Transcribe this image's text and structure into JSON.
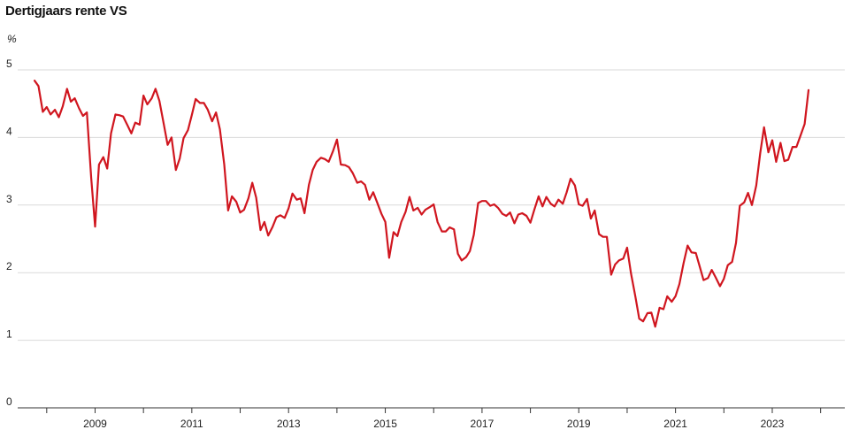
{
  "chart_data": {
    "type": "line",
    "title": "Dertigjaars rente VS",
    "unit": "%",
    "xlabel": "",
    "ylabel": "",
    "ylim": [
      0,
      5
    ],
    "yticks": [
      0,
      1,
      2,
      3,
      4,
      5
    ],
    "xlim": [
      2007.4,
      2024.5
    ],
    "xticks": [
      2009,
      2011,
      2013,
      2015,
      2017,
      2019,
      2021,
      2023
    ],
    "grid": true,
    "legend": "none",
    "series": [
      {
        "color": "#d0161f",
        "points": [
          [
            2007.75,
            4.84
          ],
          [
            2007.83,
            4.76
          ],
          [
            2007.92,
            4.38
          ],
          [
            2008.0,
            4.45
          ],
          [
            2008.08,
            4.34
          ],
          [
            2008.17,
            4.41
          ],
          [
            2008.25,
            4.3
          ],
          [
            2008.33,
            4.46
          ],
          [
            2008.42,
            4.72
          ],
          [
            2008.5,
            4.53
          ],
          [
            2008.58,
            4.58
          ],
          [
            2008.67,
            4.43
          ],
          [
            2008.75,
            4.32
          ],
          [
            2008.83,
            4.37
          ],
          [
            2008.92,
            3.4
          ],
          [
            2009.0,
            2.68
          ],
          [
            2009.08,
            3.6
          ],
          [
            2009.17,
            3.71
          ],
          [
            2009.25,
            3.54
          ],
          [
            2009.33,
            4.06
          ],
          [
            2009.42,
            4.34
          ],
          [
            2009.5,
            4.33
          ],
          [
            2009.58,
            4.31
          ],
          [
            2009.67,
            4.18
          ],
          [
            2009.75,
            4.06
          ],
          [
            2009.83,
            4.22
          ],
          [
            2009.92,
            4.19
          ],
          [
            2010.0,
            4.62
          ],
          [
            2010.08,
            4.49
          ],
          [
            2010.17,
            4.58
          ],
          [
            2010.25,
            4.72
          ],
          [
            2010.33,
            4.54
          ],
          [
            2010.42,
            4.2
          ],
          [
            2010.5,
            3.89
          ],
          [
            2010.58,
            4.0
          ],
          [
            2010.67,
            3.52
          ],
          [
            2010.75,
            3.69
          ],
          [
            2010.83,
            3.99
          ],
          [
            2010.92,
            4.11
          ],
          [
            2011.0,
            4.33
          ],
          [
            2011.08,
            4.57
          ],
          [
            2011.17,
            4.51
          ],
          [
            2011.25,
            4.51
          ],
          [
            2011.33,
            4.41
          ],
          [
            2011.42,
            4.24
          ],
          [
            2011.5,
            4.37
          ],
          [
            2011.58,
            4.12
          ],
          [
            2011.67,
            3.6
          ],
          [
            2011.75,
            2.92
          ],
          [
            2011.83,
            3.13
          ],
          [
            2011.92,
            3.05
          ],
          [
            2012.0,
            2.89
          ],
          [
            2012.08,
            2.93
          ],
          [
            2012.17,
            3.1
          ],
          [
            2012.25,
            3.33
          ],
          [
            2012.33,
            3.11
          ],
          [
            2012.42,
            2.63
          ],
          [
            2012.5,
            2.75
          ],
          [
            2012.58,
            2.55
          ],
          [
            2012.67,
            2.68
          ],
          [
            2012.75,
            2.82
          ],
          [
            2012.83,
            2.85
          ],
          [
            2012.92,
            2.81
          ],
          [
            2013.0,
            2.95
          ],
          [
            2013.08,
            3.17
          ],
          [
            2013.17,
            3.08
          ],
          [
            2013.25,
            3.1
          ],
          [
            2013.33,
            2.88
          ],
          [
            2013.42,
            3.3
          ],
          [
            2013.5,
            3.52
          ],
          [
            2013.58,
            3.64
          ],
          [
            2013.67,
            3.7
          ],
          [
            2013.75,
            3.68
          ],
          [
            2013.83,
            3.64
          ],
          [
            2013.92,
            3.8
          ],
          [
            2014.0,
            3.97
          ],
          [
            2014.08,
            3.6
          ],
          [
            2014.17,
            3.59
          ],
          [
            2014.25,
            3.56
          ],
          [
            2014.33,
            3.47
          ],
          [
            2014.42,
            3.33
          ],
          [
            2014.5,
            3.35
          ],
          [
            2014.58,
            3.3
          ],
          [
            2014.67,
            3.08
          ],
          [
            2014.75,
            3.19
          ],
          [
            2014.83,
            3.04
          ],
          [
            2014.92,
            2.87
          ],
          [
            2015.0,
            2.75
          ],
          [
            2015.08,
            2.22
          ],
          [
            2015.17,
            2.6
          ],
          [
            2015.25,
            2.54
          ],
          [
            2015.33,
            2.75
          ],
          [
            2015.42,
            2.9
          ],
          [
            2015.5,
            3.12
          ],
          [
            2015.58,
            2.92
          ],
          [
            2015.67,
            2.96
          ],
          [
            2015.75,
            2.86
          ],
          [
            2015.83,
            2.93
          ],
          [
            2015.92,
            2.97
          ],
          [
            2016.0,
            3.01
          ],
          [
            2016.08,
            2.75
          ],
          [
            2016.17,
            2.61
          ],
          [
            2016.25,
            2.61
          ],
          [
            2016.33,
            2.67
          ],
          [
            2016.42,
            2.64
          ],
          [
            2016.5,
            2.28
          ],
          [
            2016.58,
            2.18
          ],
          [
            2016.67,
            2.23
          ],
          [
            2016.75,
            2.32
          ],
          [
            2016.83,
            2.56
          ],
          [
            2016.92,
            3.03
          ],
          [
            2017.0,
            3.06
          ],
          [
            2017.08,
            3.06
          ],
          [
            2017.17,
            2.99
          ],
          [
            2017.25,
            3.01
          ],
          [
            2017.33,
            2.96
          ],
          [
            2017.42,
            2.87
          ],
          [
            2017.5,
            2.84
          ],
          [
            2017.58,
            2.89
          ],
          [
            2017.67,
            2.73
          ],
          [
            2017.75,
            2.86
          ],
          [
            2017.83,
            2.88
          ],
          [
            2017.92,
            2.84
          ],
          [
            2018.0,
            2.74
          ],
          [
            2018.08,
            2.93
          ],
          [
            2018.17,
            3.13
          ],
          [
            2018.25,
            2.98
          ],
          [
            2018.33,
            3.12
          ],
          [
            2018.42,
            3.02
          ],
          [
            2018.5,
            2.98
          ],
          [
            2018.58,
            3.08
          ],
          [
            2018.67,
            3.02
          ],
          [
            2018.75,
            3.19
          ],
          [
            2018.83,
            3.39
          ],
          [
            2018.92,
            3.29
          ],
          [
            2019.0,
            3.01
          ],
          [
            2019.08,
            2.99
          ],
          [
            2019.17,
            3.09
          ],
          [
            2019.25,
            2.8
          ],
          [
            2019.33,
            2.92
          ],
          [
            2019.42,
            2.57
          ],
          [
            2019.5,
            2.53
          ],
          [
            2019.58,
            2.53
          ],
          [
            2019.67,
            1.97
          ],
          [
            2019.75,
            2.12
          ],
          [
            2019.83,
            2.18
          ],
          [
            2019.92,
            2.21
          ],
          [
            2020.0,
            2.37
          ],
          [
            2020.08,
            1.99
          ],
          [
            2020.17,
            1.65
          ],
          [
            2020.25,
            1.32
          ],
          [
            2020.33,
            1.28
          ],
          [
            2020.42,
            1.4
          ],
          [
            2020.5,
            1.41
          ],
          [
            2020.58,
            1.2
          ],
          [
            2020.67,
            1.48
          ],
          [
            2020.75,
            1.46
          ],
          [
            2020.83,
            1.65
          ],
          [
            2020.92,
            1.57
          ],
          [
            2021.0,
            1.65
          ],
          [
            2021.08,
            1.83
          ],
          [
            2021.17,
            2.15
          ],
          [
            2021.25,
            2.4
          ],
          [
            2021.33,
            2.3
          ],
          [
            2021.42,
            2.29
          ],
          [
            2021.5,
            2.09
          ],
          [
            2021.58,
            1.89
          ],
          [
            2021.67,
            1.92
          ],
          [
            2021.75,
            2.04
          ],
          [
            2021.83,
            1.93
          ],
          [
            2021.92,
            1.8
          ],
          [
            2022.0,
            1.91
          ],
          [
            2022.08,
            2.11
          ],
          [
            2022.17,
            2.16
          ],
          [
            2022.25,
            2.44
          ],
          [
            2022.33,
            2.99
          ],
          [
            2022.42,
            3.04
          ],
          [
            2022.5,
            3.18
          ],
          [
            2022.58,
            3.0
          ],
          [
            2022.67,
            3.29
          ],
          [
            2022.75,
            3.76
          ],
          [
            2022.83,
            4.15
          ],
          [
            2022.92,
            3.78
          ],
          [
            2023.0,
            3.96
          ],
          [
            2023.08,
            3.64
          ],
          [
            2023.17,
            3.92
          ],
          [
            2023.25,
            3.65
          ],
          [
            2023.33,
            3.67
          ],
          [
            2023.42,
            3.86
          ],
          [
            2023.5,
            3.86
          ],
          [
            2023.58,
            4.02
          ],
          [
            2023.67,
            4.2
          ],
          [
            2023.75,
            4.7
          ]
        ]
      }
    ]
  }
}
